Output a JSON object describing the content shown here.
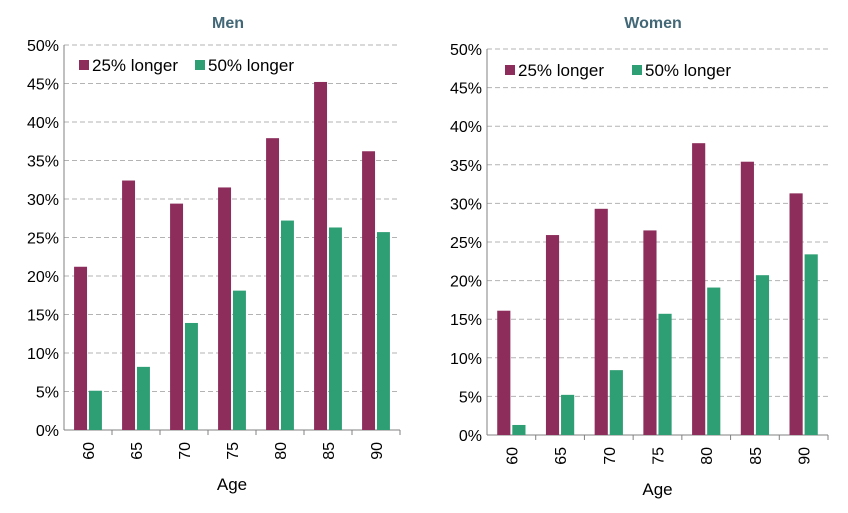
{
  "chart_data": [
    {
      "type": "bar",
      "title": "Men",
      "xlabel": "Age",
      "ylabel": "",
      "ylim": [
        0,
        50
      ],
      "ytick_labels": [
        "0%",
        "5%",
        "10%",
        "15%",
        "20%",
        "25%",
        "30%",
        "35%",
        "40%",
        "45%",
        "50%"
      ],
      "categories": [
        "60",
        "65",
        "70",
        "75",
        "80",
        "85",
        "90"
      ],
      "series": [
        {
          "name": "25% longer",
          "color": "#8c2d5b",
          "values": [
            21.2,
            32.4,
            29.4,
            31.5,
            37.9,
            45.2,
            36.2
          ]
        },
        {
          "name": "50% longer",
          "color": "#2e9e74",
          "values": [
            5.1,
            8.2,
            13.9,
            18.1,
            27.2,
            26.3,
            25.7
          ]
        }
      ],
      "grid": true,
      "legend": "top-left"
    },
    {
      "type": "bar",
      "title": "Women",
      "xlabel": "Age",
      "ylabel": "",
      "ylim": [
        0,
        50
      ],
      "ytick_labels": [
        "0%",
        "5%",
        "10%",
        "15%",
        "20%",
        "25%",
        "30%",
        "35%",
        "40%",
        "45%",
        "50%"
      ],
      "categories": [
        "60",
        "65",
        "70",
        "75",
        "80",
        "85",
        "90"
      ],
      "series": [
        {
          "name": "25% longer",
          "color": "#8c2d5b",
          "values": [
            16.1,
            25.9,
            29.3,
            26.5,
            37.8,
            35.4,
            31.3
          ]
        },
        {
          "name": "50% longer",
          "color": "#2e9e74",
          "values": [
            1.3,
            5.2,
            8.4,
            15.7,
            19.1,
            20.7,
            23.4
          ]
        }
      ],
      "grid": true,
      "legend": "top-left"
    }
  ]
}
